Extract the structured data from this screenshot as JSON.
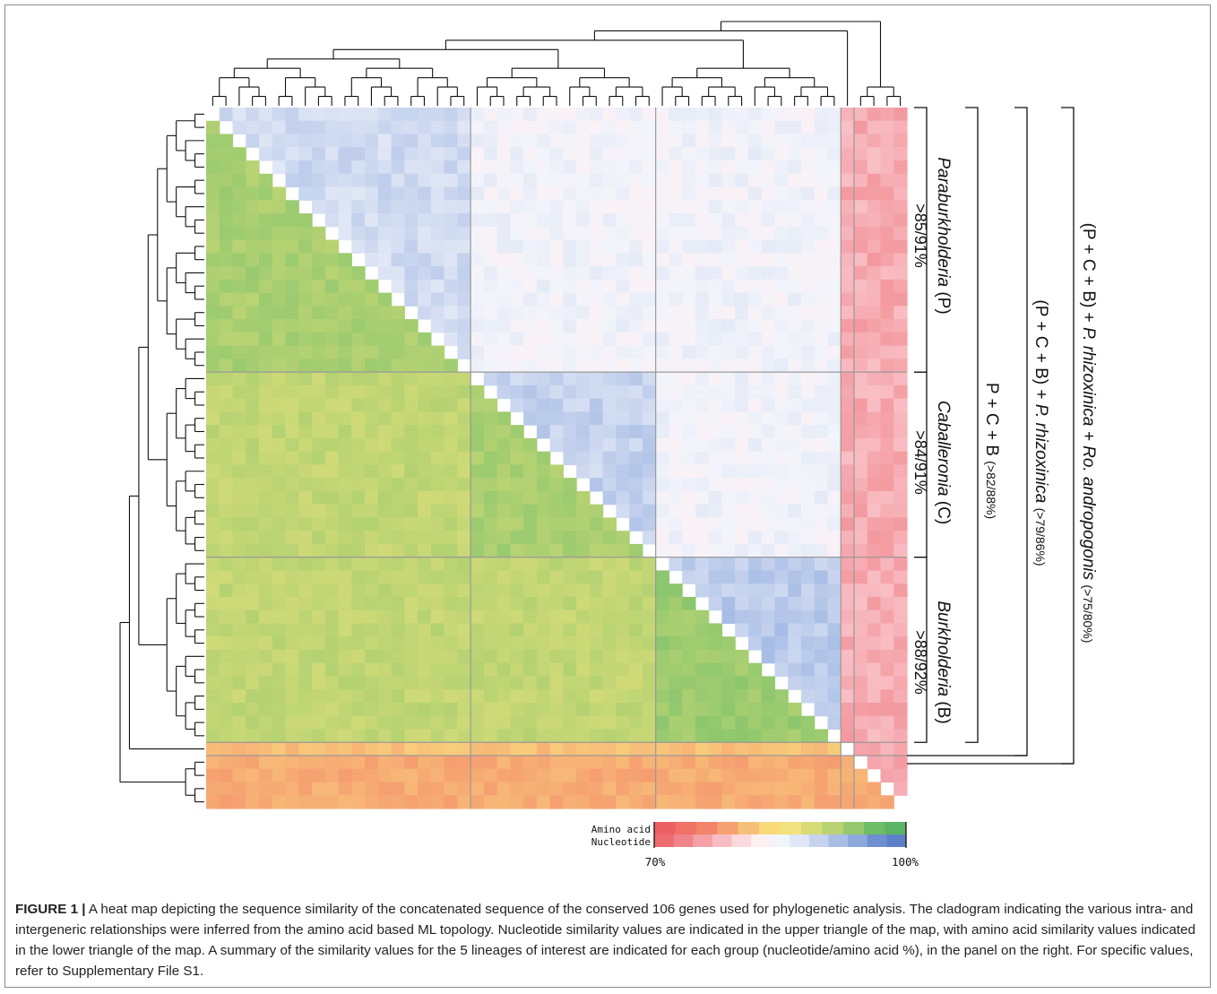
{
  "figure": {
    "label": "FIGURE 1 |",
    "caption": "A heat map depicting the sequence similarity of the concatenated sequence of the conserved 106 genes used for phylogenetic analysis. The cladogram indicating the various intra- and intergeneric relationships were inferred from the amino acid based ML topology. Nucleotide similarity values are indicated in the upper triangle of the map, with amino acid similarity values indicated in the lower triangle of the map. A summary of the similarity values for the 5 lineages of interest are indicated for each group (nucleotide/amino acid %), in the panel on the right. For specific values, refer to Supplementary File S1."
  },
  "chart_data": {
    "type": "heatmap",
    "title": "",
    "matrix_layout": "upper triangle = nucleotide similarity; lower triangle = amino acid similarity",
    "groups": [
      {
        "name": "Paraburkholderia",
        "abbr": "(P)",
        "range": ">85/91%",
        "taxa": 20
      },
      {
        "name": "Caballeronia",
        "abbr": "(C)",
        "range": ">84/91%",
        "taxa": 14
      },
      {
        "name": "Burkholderia",
        "abbr": "(B)",
        "range": ">88/92%",
        "taxa": 14
      },
      {
        "name": "P. rhizoxinica",
        "abbr": "",
        "range": "",
        "taxa": 1
      },
      {
        "name": "Ro. andropogonis",
        "abbr": "",
        "range": "",
        "taxa": 4
      }
    ],
    "approx_similarity": {
      "amino_acid": {
        "P-P": 93,
        "C-P": 91,
        "C-C": 93,
        "B-P": 91,
        "B-C": 91,
        "B-B": 94,
        "Rz-X": 81,
        "Ro-X": 79
      },
      "nucleotide": {
        "P-P": 89,
        "P-C": 85,
        "C-C": 90,
        "P-B": 85,
        "C-B": 85,
        "B-B": 91,
        "X-Rz": 76,
        "X-Ro": 76
      }
    },
    "nested_brackets": [
      {
        "label": "P + C + B",
        "range": "(>82/88%)"
      },
      {
        "label": "(P + C + B) + ",
        "italic": "P. rhizoxinica",
        "range": "(>79/86%)"
      },
      {
        "label": "(P + C +  B) + ",
        "italic": "P. rhizoxinica + Ro. andropogonis",
        "range": "(>75/80%)"
      }
    ],
    "legend": {
      "row1_label": "Amino acid",
      "row2_label": "Nucleotide",
      "min_label": "70%",
      "max_label": "100%",
      "range": [
        70,
        100
      ],
      "amino_acid_colors": [
        "#ee5f64",
        "#f07166",
        "#f2846a",
        "#f6a171",
        "#f7c079",
        "#f9da7b",
        "#f2e27d",
        "#d7dc79",
        "#b9d373",
        "#96c96f",
        "#6fbc69",
        "#5ab463"
      ],
      "nucleotide_colors": [
        "#ee6b70",
        "#f1848a",
        "#f4a0a6",
        "#f8bdc3",
        "#fbd9de",
        "#fdf0f3",
        "#f2f4fb",
        "#dfe6f5",
        "#c6d3ee",
        "#a9bee5",
        "#8ea7dc",
        "#6f8fd0",
        "#5d80c8"
      ]
    }
  }
}
